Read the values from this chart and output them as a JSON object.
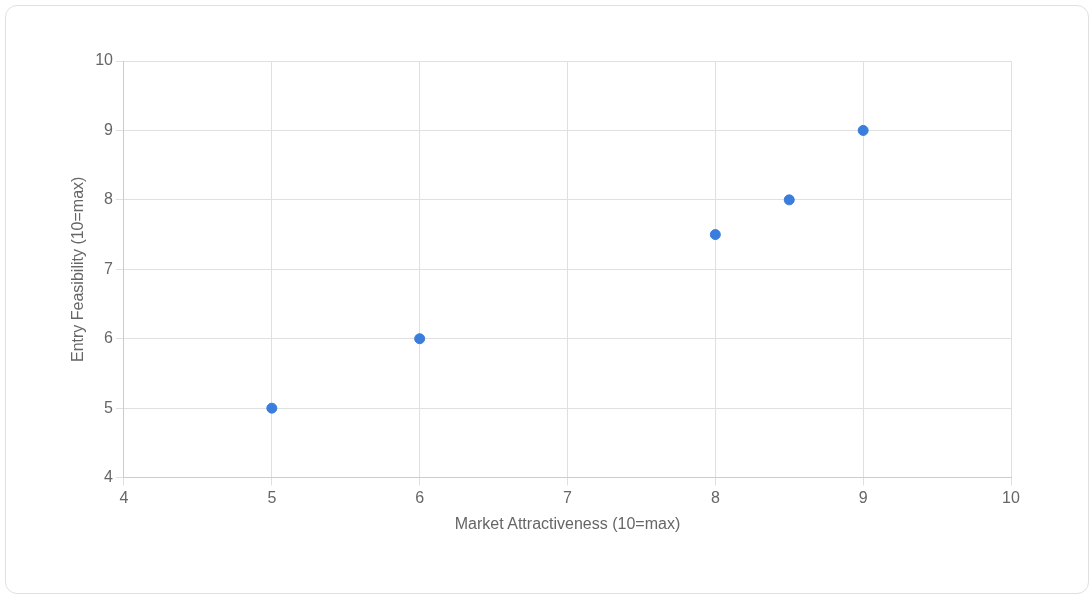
{
  "chart_data": {
    "type": "scatter",
    "xlabel": "Market Attractiveness (10=max)",
    "ylabel": "Entry Feasibility (10=max)",
    "series": [
      {
        "color": "#3b7ddd",
        "x": [
          5,
          6,
          8,
          8.5,
          9
        ],
        "values": [
          5,
          6,
          7.5,
          8,
          9
        ]
      }
    ],
    "xlim": [
      4,
      10
    ],
    "xticks": [
      4,
      5,
      6,
      7,
      8,
      9,
      10
    ],
    "ylim": [
      4,
      10
    ],
    "yticks": [
      4,
      5,
      6,
      7,
      8,
      9,
      10
    ],
    "grid": true,
    "legend": false,
    "marker": "circle"
  }
}
